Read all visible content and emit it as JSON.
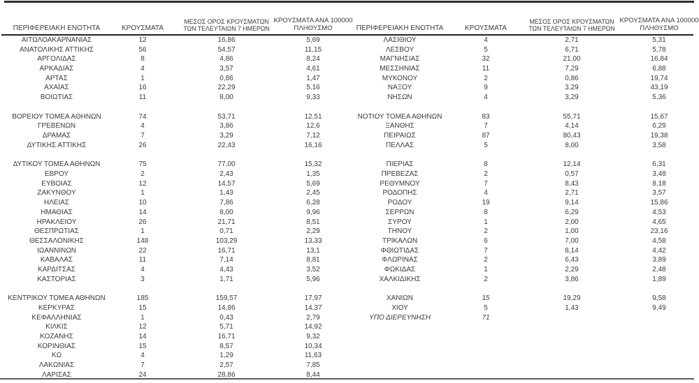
{
  "colors": {
    "text": "#3a3a3a",
    "header_rule": "#212121",
    "top_bar": "#2e2e2e",
    "bottom_bar": "#5a5a5a"
  },
  "table": {
    "headers": {
      "region": "ΠΕΡΙΦΕΡΕΙΑΚΗ ΕΝΟΤΗΤΑ",
      "cases": "ΚΡΟΥΣΜΑΤΑ",
      "avg7_l1": "ΜΕΣΟΣ ΟΡΟΣ ΚΡΟΥΣΜΑΤΩΝ",
      "avg7_l2": "ΤΩΝ ΤΕΛΕΥΤΑΙΩΝ 7 ΗΜΕΡΩΝ",
      "per100k_l1": "ΚΡΟΥΣΜΑΤΑ ΑΝΑ 100000",
      "per100k_l2": "ΠΛΗΘΥΣΜΟ"
    },
    "rows": [
      {
        "c": [
          "ΑΙΤΩΛΟΑΚΑΡΝΑΝΙΑΣ",
          "12",
          "16,86",
          "5,69",
          "ΛΑΣΙΘΙΟΥ",
          "4",
          "2,71",
          "5,31"
        ]
      },
      {
        "c": [
          "ΑΝΑΤΟΛΙΚΗΣ ΑΤΤΙΚΗΣ",
          "56",
          "54,57",
          "11,15",
          "ΛΕΣΒΟΥ",
          "5",
          "6,71",
          "5,78"
        ]
      },
      {
        "c": [
          "ΑΡΓΟΛΙΔΑΣ",
          "8",
          "4,86",
          "8,24",
          "ΜΑΓΝΗΣΙΑΣ",
          "32",
          "21,00",
          "16,84"
        ]
      },
      {
        "c": [
          "ΑΡΚΑΔΙΑΣ",
          "4",
          "3,57",
          "4,61",
          "ΜΕΣΣΗΝΙΑΣ",
          "11",
          "7,29",
          "6,88"
        ]
      },
      {
        "c": [
          "ΑΡΤΑΣ",
          "1",
          "0,86",
          "1,47",
          "ΜΥΚΟΝΟΥ",
          "2",
          "0,86",
          "19,74"
        ]
      },
      {
        "c": [
          "ΑΧΑΪΑΣ",
          "16",
          "22,29",
          "5,16",
          "ΝΑΞΟΥ",
          "9",
          "3,29",
          "43,19"
        ]
      },
      {
        "c": [
          "ΒΟΙΩΤΙΑΣ",
          "11",
          "8,00",
          "9,33",
          "ΝΗΣΩΝ",
          "4",
          "3,29",
          "5,36"
        ]
      },
      {
        "sep": true
      },
      {
        "c": [
          "ΒΟΡΕΙΟΥ ΤΟΜΕΑ ΑΘΗΝΩΝ",
          "74",
          "53,71",
          "12,51",
          "ΝΟΤΙΟΥ ΤΟΜΕΑ ΑΘΗΝΩΝ",
          "83",
          "55,71",
          "15,67"
        ]
      },
      {
        "c": [
          "ΓΡΕΒΕΝΩΝ",
          "4",
          "3,86",
          "12,6",
          "ΞΑΝΘΗΣ",
          "7",
          "4,14",
          "6,29"
        ]
      },
      {
        "c": [
          "ΔΡΑΜΑΣ",
          "7",
          "3,29",
          "7,12",
          "ΠΕΙΡΑΙΩΣ",
          "87",
          "80,43",
          "19,38"
        ]
      },
      {
        "c": [
          "ΔΥΤΙΚΗΣ ΑΤΤΙΚΗΣ",
          "26",
          "22,43",
          "16,16",
          "ΠΕΛΛΑΣ",
          "5",
          "8,00",
          "3,58"
        ]
      },
      {
        "sep": true
      },
      {
        "c": [
          "ΔΥΤΙΚΟΥ ΤΟΜΕΑ ΑΘΗΝΩΝ",
          "75",
          "77,00",
          "15,32",
          "ΠΙΕΡΙΑΣ",
          "8",
          "12,14",
          "6,31"
        ]
      },
      {
        "c": [
          "ΕΒΡΟΥ",
          "2",
          "2,43",
          "1,35",
          "ΠΡΕΒΕΖΑΣ",
          "2",
          "0,57",
          "3,48"
        ]
      },
      {
        "c": [
          "ΕΥΒΟΙΑΣ",
          "12",
          "14,57",
          "5,69",
          "ΡΕΘΥΜΝΟΥ",
          "7",
          "8,43",
          "8,18"
        ]
      },
      {
        "c": [
          "ΖΑΚΥΝΘΟΥ",
          "1",
          "1,43",
          "2,45",
          "ΡΟΔΟΠΗΣ",
          "4",
          "2,71",
          "3,57"
        ]
      },
      {
        "c": [
          "ΗΛΕΙΑΣ",
          "10",
          "7,86",
          "6,28",
          "ΡΟΔΟΥ",
          "19",
          "9,14",
          "15,86"
        ]
      },
      {
        "c": [
          "ΗΜΑΘΙΑΣ",
          "14",
          "8,00",
          "9,96",
          "ΣΕΡΡΩΝ",
          "8",
          "6,29",
          "4,53"
        ]
      },
      {
        "c": [
          "ΗΡΑΚΛΕΙΟΥ",
          "26",
          "21,71",
          "8,51",
          "ΣΥΡΟΥ",
          "1",
          "2,00",
          "4,65"
        ]
      },
      {
        "c": [
          "ΘΕΣΠΡΩΤΙΑΣ",
          "1",
          "0,71",
          "2,29",
          "ΤΗΝΟΥ",
          "2",
          "1,00",
          "23,16"
        ]
      },
      {
        "c": [
          "ΘΕΣΣΑΛΟΝΙΚΗΣ",
          "148",
          "103,29",
          "13,33",
          "ΤΡΙΚΑΛΩΝ",
          "6",
          "7,00",
          "4,58"
        ]
      },
      {
        "c": [
          "ΙΩΑΝΝΙΝΩΝ",
          "22",
          "16,71",
          "13,1",
          "ΦΘΙΩΤΙΔΑΣ",
          "7",
          "8,14",
          "4,42"
        ]
      },
      {
        "c": [
          "ΚΑΒΑΛΑΣ",
          "11",
          "7,14",
          "8,81",
          "ΦΛΩΡΙΝΑΣ",
          "2",
          "6,43",
          "3,89"
        ]
      },
      {
        "c": [
          "ΚΑΡΔΙΤΣΑΣ",
          "4",
          "4,43",
          "3,52",
          "ΦΩΚΙΔΑΣ",
          "1",
          "2,29",
          "2,48"
        ]
      },
      {
        "c": [
          "ΚΑΣΤΟΡΙΑΣ",
          "3",
          "1,71",
          "5,96",
          "ΧΑΛΚΙΔΙΚΗΣ",
          "2",
          "3,86",
          "1,89"
        ]
      },
      {
        "sep": true
      },
      {
        "c": [
          "ΚΕΝΤΡΙΚΟΥ ΤΟΜΕΑ ΑΘΗΝΩΝ",
          "185",
          "159,57",
          "17,97",
          "ΧΑΝΙΩΝ",
          "15",
          "19,29",
          "9,58"
        ]
      },
      {
        "c": [
          "ΚΕΡΚΥΡΑΣ",
          "15",
          "14,86",
          "14,37",
          "ΧΙΟΥ",
          "5",
          "1,43",
          "9,49"
        ]
      },
      {
        "c": [
          "ΚΕΦΑΛΛΗΝΙΑΣ",
          "1",
          "0,43",
          "2,79",
          "ΥΠΟ ΔΙΕΡΕΥΝΗΣΗ",
          "71",
          "",
          ""
        ],
        "it": true
      },
      {
        "c": [
          "ΚΙΛΚΙΣ",
          "12",
          "5,71",
          "14,92",
          "",
          "",
          "",
          ""
        ]
      },
      {
        "c": [
          "ΚΟΖΑΝΗΣ",
          "14",
          "16,71",
          "9,32",
          "",
          "",
          "",
          ""
        ]
      },
      {
        "c": [
          "ΚΟΡΙΝΘΙΑΣ",
          "15",
          "8,57",
          "10,34",
          "",
          "",
          "",
          ""
        ]
      },
      {
        "c": [
          "ΚΩ",
          "4",
          "1,29",
          "11,63",
          "",
          "",
          "",
          ""
        ]
      },
      {
        "c": [
          "ΛΑΚΩΝΙΑΣ",
          "7",
          "2,57",
          "7,85",
          "",
          "",
          "",
          ""
        ]
      },
      {
        "c": [
          "ΛΑΡΙΣΑΣ",
          "24",
          "28,86",
          "8,44",
          "",
          "",
          "",
          ""
        ]
      }
    ]
  }
}
